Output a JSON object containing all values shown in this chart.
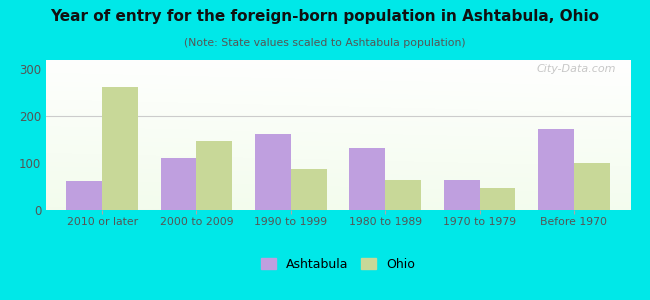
{
  "title": "Year of entry for the foreign-born population in Ashtabula, Ohio",
  "subtitle": "(Note: State values scaled to Ashtabula population)",
  "categories": [
    "2010 or later",
    "2000 to 2009",
    "1990 to 1999",
    "1980 to 1989",
    "1970 to 1979",
    "Before 1970"
  ],
  "ashtabula_values": [
    62,
    112,
    163,
    133,
    65,
    172
  ],
  "ohio_values": [
    263,
    147,
    88,
    63,
    48,
    100
  ],
  "ashtabula_color": "#bf9fdf",
  "ohio_color": "#c8d898",
  "figure_bg": "#00e8e8",
  "ylim": [
    0,
    320
  ],
  "yticks": [
    0,
    100,
    200,
    300
  ],
  "bar_width": 0.38,
  "watermark": "City-Data.com",
  "legend_labels": [
    "Ashtabula",
    "Ohio"
  ],
  "tick_color": "#555555",
  "grid_color": "#cccccc"
}
